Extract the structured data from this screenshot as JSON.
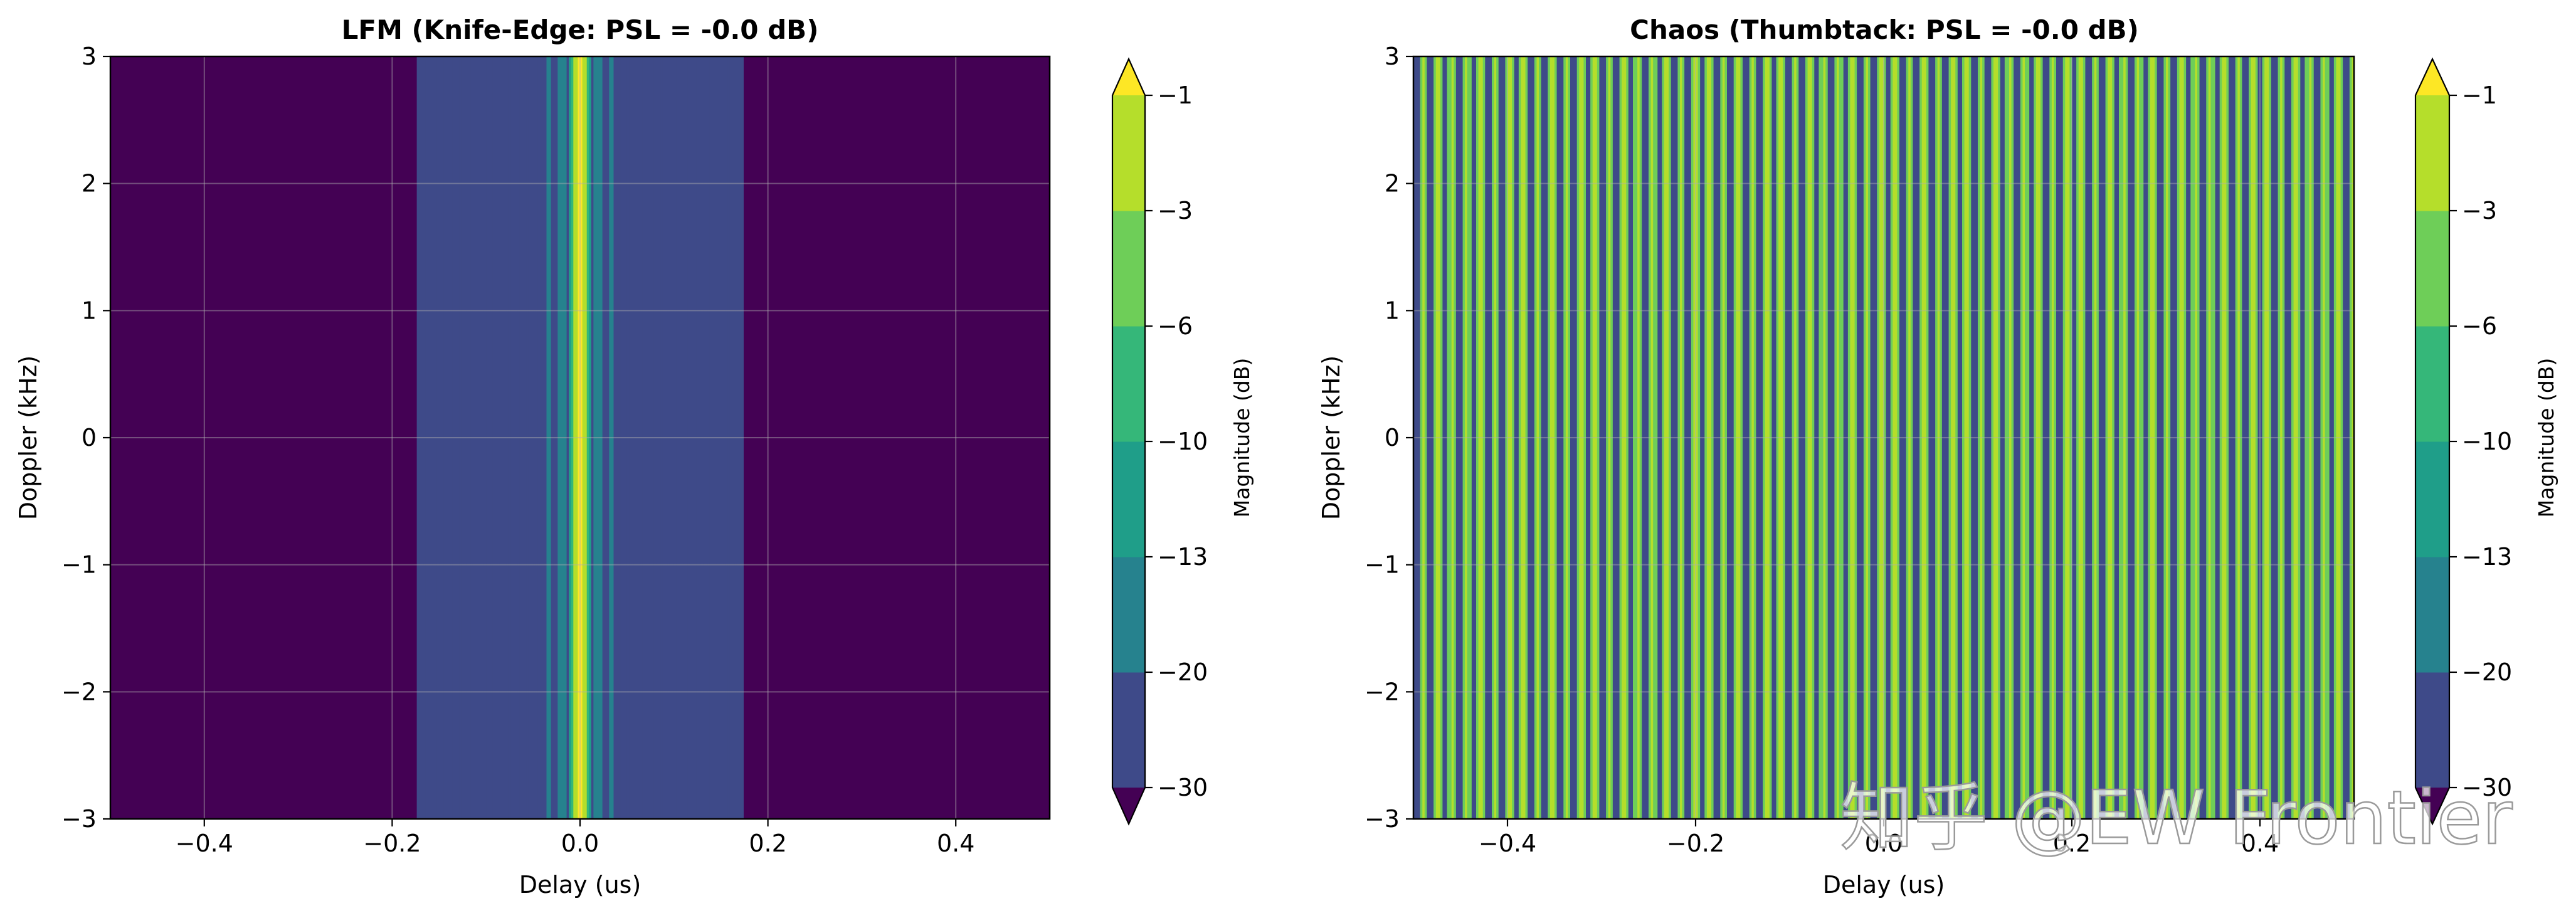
{
  "chart_data": [
    {
      "type": "heatmap",
      "title": "LFM (Knife-Edge: PSL = -0.0 dB)",
      "xlabel": "Delay (us)",
      "ylabel": "Doppler (kHz)",
      "xlim": [
        -0.5,
        0.5
      ],
      "ylim": [
        -3,
        3
      ],
      "xticks": [
        "−0.4",
        "−0.2",
        "0.0",
        "0.2",
        "0.4"
      ],
      "yticks": [
        "−3",
        "−2",
        "−1",
        "0",
        "1",
        "2",
        "3"
      ],
      "grid": true,
      "pattern": "knife-edge",
      "mainlobe_center_us": 0.0,
      "sidelobe_extent_us": 0.175,
      "colorbar": {
        "label": "Magnitude (dB)",
        "levels": [
          -30,
          -20,
          -13,
          -10,
          -6,
          -3,
          -1
        ],
        "tick_labels": [
          "−30",
          "−20",
          "−13",
          "−10",
          "−6",
          "−3",
          "−1"
        ],
        "colors": [
          "#3e4a89",
          "#26828e",
          "#1f9e89",
          "#35b779",
          "#6ece58",
          "#b5de2b",
          "#fde725"
        ],
        "under_color": "#440154",
        "over_color": "#fde725",
        "extend": "both"
      }
    },
    {
      "type": "heatmap",
      "title": "Chaos (Thumbtack: PSL = -0.0 dB)",
      "xlabel": "Delay (us)",
      "ylabel": "Doppler (kHz)",
      "xlim": [
        -0.5,
        0.5
      ],
      "ylim": [
        -3,
        3
      ],
      "xticks": [
        "−0.4",
        "−0.2",
        "0.0",
        "0.2",
        "0.4"
      ],
      "yticks": [
        "−3",
        "−2",
        "−1",
        "0",
        "1",
        "2",
        "3"
      ],
      "grid": true,
      "pattern": "periodic-stripes",
      "stripe_period_us": 0.0152,
      "colorbar": {
        "label": "Magnitude (dB)",
        "levels": [
          -30,
          -20,
          -13,
          -10,
          -6,
          -3,
          -1
        ],
        "tick_labels": [
          "−30",
          "−20",
          "−13",
          "−10",
          "−6",
          "−3",
          "−1"
        ],
        "colors": [
          "#3e4a89",
          "#26828e",
          "#1f9e89",
          "#35b779",
          "#6ece58",
          "#b5de2b",
          "#fde725"
        ],
        "under_color": "#440154",
        "over_color": "#fde725",
        "extend": "both"
      }
    }
  ],
  "watermark": {
    "text": "知乎 @EW Frontier"
  }
}
